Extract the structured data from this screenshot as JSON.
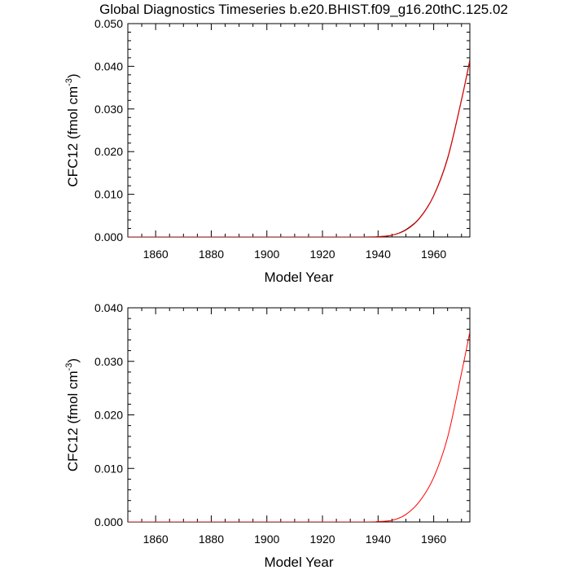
{
  "figure_title": "Global Diagnostics Timeseries b.e20.BHIST.f09_g16.20thC.125.02",
  "chart_data": [
    {
      "type": "line",
      "xlabel": "Model Year",
      "ylabel_main": "CFC12 (fmol cm",
      "ylabel_sup": "-3",
      "ylabel_close": ")",
      "xlim": [
        1850,
        1973
      ],
      "ylim": [
        0,
        0.05
      ],
      "xticks": [
        1860,
        1880,
        1900,
        1920,
        1940,
        1960
      ],
      "yticks": [
        0.0,
        0.01,
        0.02,
        0.03,
        0.04,
        0.05
      ],
      "ytick_labels": [
        "0.000",
        "0.010",
        "0.020",
        "0.030",
        "0.040",
        "0.050"
      ],
      "grid": false,
      "series": [
        {
          "name": "black",
          "color": "#000000",
          "x": [
            1850,
            1930,
            1940,
            1945,
            1950,
            1955,
            1960,
            1965,
            1970,
            1973
          ],
          "y": [
            0,
            0,
            0.0001,
            0.0004,
            0.0017,
            0.0045,
            0.0097,
            0.0185,
            0.0322,
            0.0415
          ]
        },
        {
          "name": "red",
          "color": "#ff0000",
          "x": [
            1850,
            1930,
            1940,
            1945,
            1950,
            1955,
            1960,
            1965,
            1970,
            1973
          ],
          "y": [
            0,
            0,
            0.0001,
            0.0004,
            0.0016,
            0.0044,
            0.0096,
            0.0183,
            0.032,
            0.0413
          ]
        }
      ]
    },
    {
      "type": "line",
      "xlabel": "Model Year",
      "ylabel_main": "CFC12 (fmol cm",
      "ylabel_sup": "-3",
      "ylabel_close": ")",
      "xlim": [
        1850,
        1973
      ],
      "ylim": [
        0,
        0.04
      ],
      "xticks": [
        1860,
        1880,
        1900,
        1920,
        1940,
        1960
      ],
      "yticks": [
        0.0,
        0.01,
        0.02,
        0.03,
        0.04
      ],
      "ytick_labels": [
        "0.000",
        "0.010",
        "0.020",
        "0.030",
        "0.040"
      ],
      "grid": false,
      "series": [
        {
          "name": "red",
          "color": "#ff0000",
          "x": [
            1850,
            1930,
            1940,
            1945,
            1950,
            1955,
            1960,
            1965,
            1970,
            1973
          ],
          "y": [
            0,
            0,
            0.0001,
            0.0003,
            0.0014,
            0.0039,
            0.0083,
            0.0158,
            0.0278,
            0.0355
          ]
        }
      ]
    }
  ]
}
